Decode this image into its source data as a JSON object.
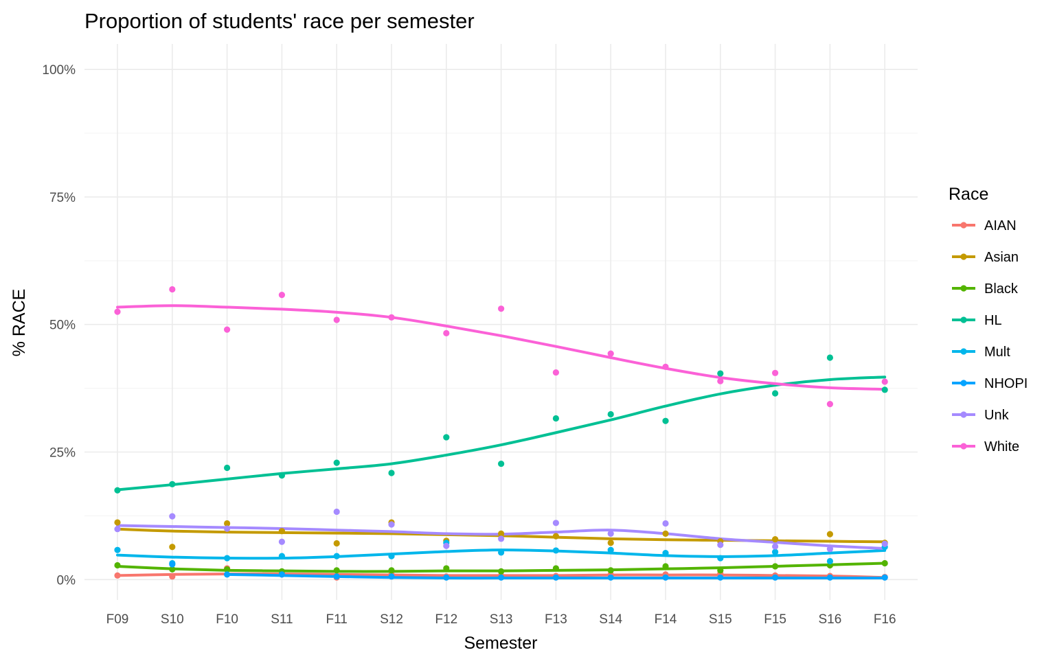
{
  "chart_data": {
    "type": "scatter",
    "title": "Proportion of students' race per semester",
    "xlabel": "Semester",
    "ylabel": "% RACE",
    "categories": [
      "F09",
      "S10",
      "F10",
      "S11",
      "F11",
      "S12",
      "F12",
      "S13",
      "F13",
      "S14",
      "F14",
      "S15",
      "F15",
      "S16",
      "F16"
    ],
    "ylim": [
      -0.04,
      1.05
    ],
    "yticks": [
      0,
      0.25,
      0.5,
      0.75,
      1.0
    ],
    "ytick_labels": [
      "0%",
      "25%",
      "50%",
      "75%",
      "100%"
    ],
    "grid": true,
    "smooth_lines": true,
    "legend": {
      "title": "Race",
      "position": "right"
    },
    "series": [
      {
        "name": "AIAN",
        "color": "#F8766D",
        "points": [
          0.008,
          0.006,
          0.022,
          0.01,
          0.004,
          0.01,
          0.006,
          0.008,
          0.007,
          0.01,
          0.01,
          0.012,
          0.008,
          0.007,
          0.005
        ],
        "smooth": [
          0.008,
          0.01,
          0.011,
          0.011,
          0.01,
          0.009,
          0.008,
          0.008,
          0.008,
          0.009,
          0.009,
          0.009,
          0.008,
          0.007,
          0.004
        ]
      },
      {
        "name": "Asian",
        "color": "#C49A00",
        "points": [
          0.112,
          0.064,
          0.11,
          0.095,
          0.071,
          0.112,
          0.076,
          0.09,
          0.085,
          0.072,
          0.09,
          0.075,
          0.079,
          0.089,
          0.072
        ],
        "smooth": [
          0.099,
          0.095,
          0.093,
          0.092,
          0.091,
          0.09,
          0.088,
          0.086,
          0.083,
          0.08,
          0.078,
          0.077,
          0.076,
          0.075,
          0.074
        ]
      },
      {
        "name": "Black",
        "color": "#53B400",
        "points": [
          0.028,
          0.02,
          0.02,
          0.016,
          0.018,
          0.018,
          0.022,
          0.016,
          0.022,
          0.018,
          0.026,
          0.018,
          0.026,
          0.028,
          0.032
        ],
        "smooth": [
          0.026,
          0.021,
          0.018,
          0.017,
          0.016,
          0.016,
          0.017,
          0.017,
          0.018,
          0.019,
          0.021,
          0.023,
          0.026,
          0.029,
          0.032
        ]
      },
      {
        "name": "HL",
        "color": "#00C094",
        "points": [
          0.175,
          0.187,
          0.219,
          0.204,
          0.229,
          0.209,
          0.279,
          0.227,
          0.316,
          0.324,
          0.311,
          0.404,
          0.365,
          0.435,
          0.372
        ],
        "smooth": [
          0.176,
          0.186,
          0.197,
          0.208,
          0.217,
          0.227,
          0.244,
          0.264,
          0.288,
          0.313,
          0.34,
          0.364,
          0.381,
          0.392,
          0.397
        ]
      },
      {
        "name": "Mult",
        "color": "#00B6EB",
        "points": [
          0.058,
          0.032,
          0.042,
          0.046,
          0.046,
          0.046,
          0.072,
          0.053,
          0.057,
          0.058,
          0.052,
          0.042,
          0.054,
          0.036,
          0.064
        ],
        "smooth": [
          0.048,
          0.044,
          0.042,
          0.042,
          0.045,
          0.05,
          0.055,
          0.058,
          0.056,
          0.052,
          0.047,
          0.045,
          0.047,
          0.052,
          0.057
        ]
      },
      {
        "name": "NHOPI",
        "color": "#06A4FF",
        "points": [
          null,
          0.03,
          0.01,
          0.01,
          0.006,
          0.006,
          0.004,
          0.004,
          0.004,
          0.004,
          0.004,
          0.004,
          0.004,
          0.004,
          0.004
        ],
        "smooth": [
          null,
          null,
          0.01,
          0.008,
          0.006,
          0.004,
          0.003,
          0.003,
          0.003,
          0.003,
          0.003,
          0.003,
          0.003,
          0.003,
          0.003
        ]
      },
      {
        "name": "Unk",
        "color": "#A58AFF",
        "points": [
          0.099,
          0.124,
          0.1,
          0.074,
          0.133,
          0.108,
          0.066,
          0.08,
          0.111,
          0.09,
          0.11,
          0.068,
          0.065,
          0.06,
          0.07
        ],
        "smooth": [
          0.106,
          0.104,
          0.102,
          0.1,
          0.097,
          0.094,
          0.09,
          0.089,
          0.093,
          0.097,
          0.09,
          0.08,
          0.073,
          0.066,
          0.061
        ]
      },
      {
        "name": "White",
        "color": "#FB61D7",
        "points": [
          0.525,
          0.569,
          0.49,
          0.558,
          0.509,
          0.514,
          0.483,
          0.531,
          0.406,
          0.443,
          0.417,
          0.389,
          0.405,
          0.344,
          0.388
        ],
        "smooth": [
          0.534,
          0.537,
          0.534,
          0.53,
          0.524,
          0.514,
          0.497,
          0.478,
          0.457,
          0.435,
          0.414,
          0.396,
          0.384,
          0.376,
          0.373
        ]
      }
    ]
  }
}
